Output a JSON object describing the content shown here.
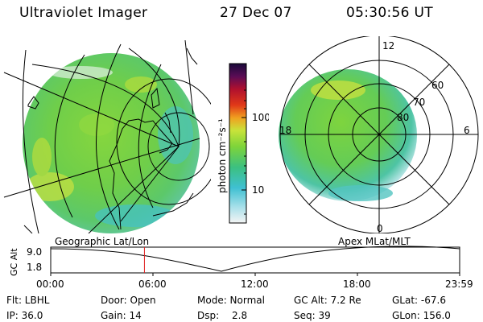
{
  "header": {
    "title": "Ultraviolet Imager",
    "date": "27 Dec 07",
    "time": "05:30:56 UT"
  },
  "colorbar": {
    "unit_label": "photon cm⁻²s⁻¹",
    "ticks": [
      "100",
      "10"
    ],
    "gradient": [
      "#f4f4f4",
      "#3fc0d2",
      "#3cc080",
      "#7ed43a",
      "#c8e33a",
      "#f0a020",
      "#e03818",
      "#b0102e",
      "#5a0c55",
      "#1a0a3a"
    ]
  },
  "polar": {
    "mlt_labels": {
      "top": "12",
      "left": "18",
      "right": "6",
      "bottom": "0"
    },
    "lat_labels": [
      "60",
      "70",
      "80"
    ]
  },
  "timeline": {
    "geo_label": "Geographic Lat/Lon",
    "apex_label": "Apex MLat/MLT",
    "axis_label": "GC Alt",
    "y_ticks": [
      "9.0",
      "1.8"
    ],
    "x_ticks": [
      "00:00",
      "06:00",
      "12:00",
      "18:00",
      "23:59"
    ],
    "current_marker_time": "05:30",
    "marker_color": "#e02020"
  },
  "info": {
    "filter": "Flt: LBHL",
    "ip": "IP: 36.0",
    "door": "Door: Open",
    "gain": "Gain: 14",
    "mode": "Mode: Normal",
    "dsp_label": "Dsp:",
    "dsp_value": "2.8",
    "gc_alt": "GC Alt: 7.2 Re",
    "seq": "Seq: 39",
    "glat": "GLat: -67.6",
    "glon": "GLon: 156.0"
  }
}
